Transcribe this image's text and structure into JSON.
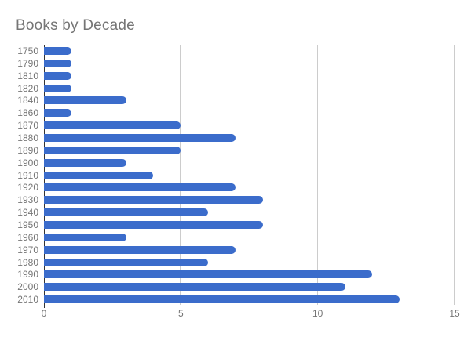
{
  "chart_data": {
    "type": "bar",
    "orientation": "horizontal",
    "title": "Books by Decade",
    "categories": [
      "1750",
      "1790",
      "1810",
      "1820",
      "1840",
      "1860",
      "1870",
      "1880",
      "1890",
      "1900",
      "1910",
      "1920",
      "1930",
      "1940",
      "1950",
      "1960",
      "1970",
      "1980",
      "1990",
      "2000",
      "2010"
    ],
    "values": [
      1,
      1,
      1,
      1,
      3,
      1,
      5,
      7,
      5,
      3,
      4,
      7,
      8,
      6,
      8,
      3,
      7,
      6,
      12,
      11,
      13
    ],
    "xlabel": "",
    "ylabel": "",
    "xlim": [
      0,
      15
    ],
    "xticks": [
      0,
      5,
      10,
      15
    ],
    "grid": "vertical-at-xticks",
    "legend": "none",
    "colors": {
      "bar": "#3b6ccb",
      "title": "#757575",
      "axis_label": "#757575",
      "gridline": "#cccccc",
      "baseline": "#333333",
      "background": "#ffffff"
    }
  }
}
